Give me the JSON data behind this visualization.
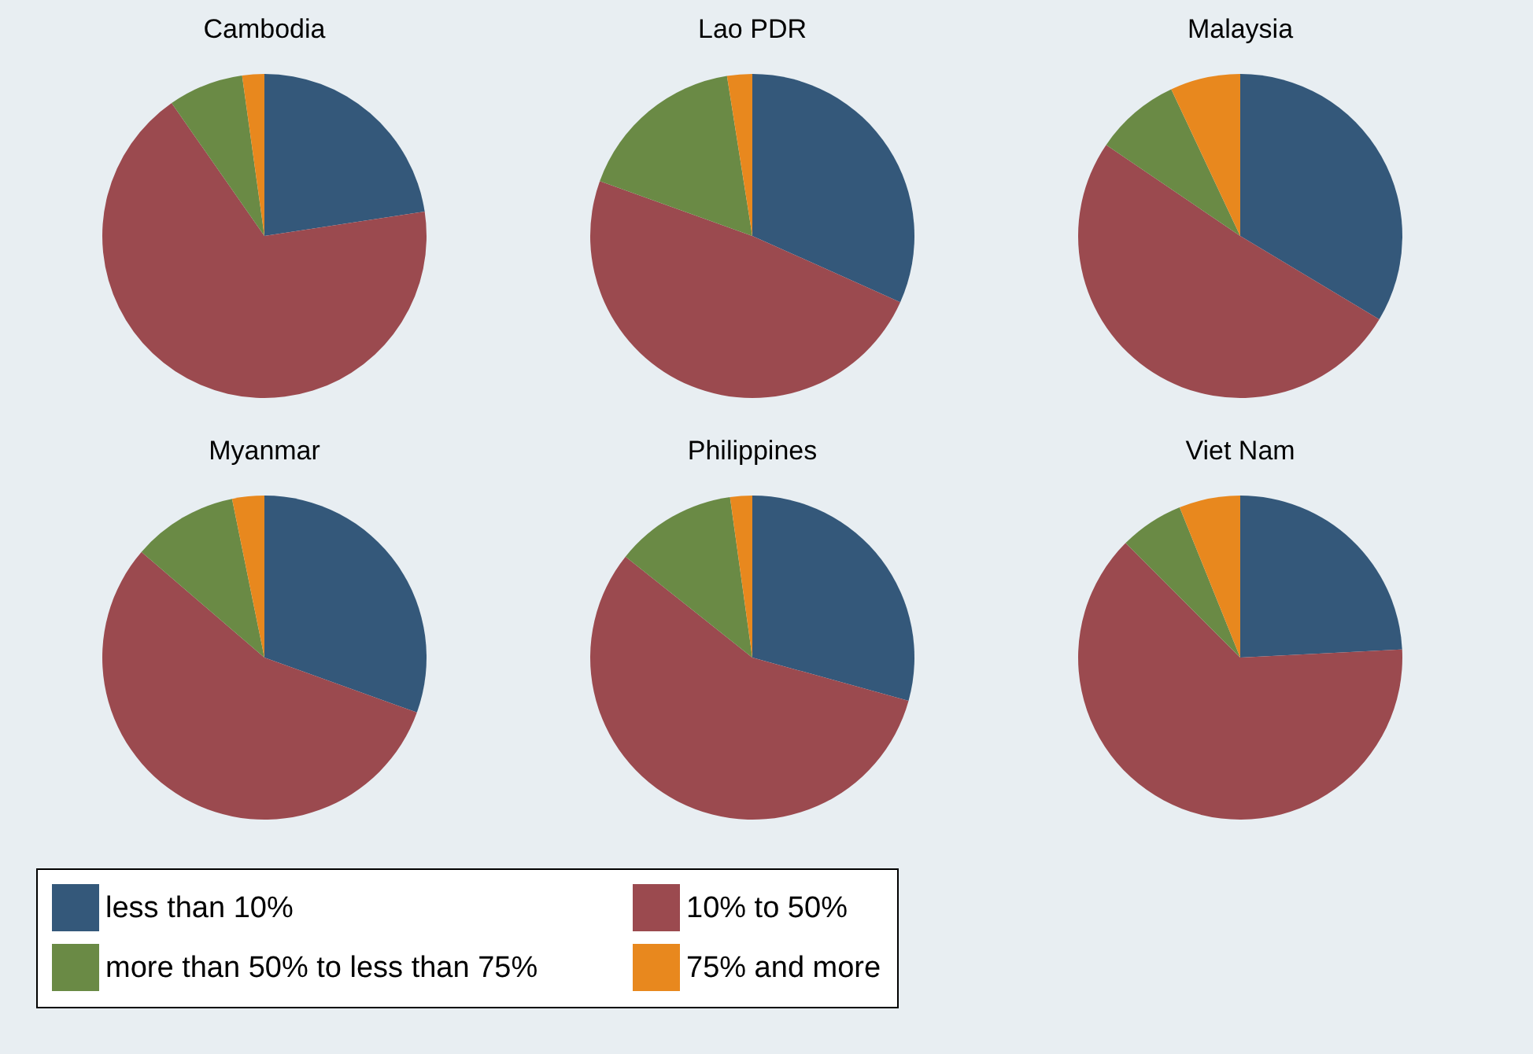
{
  "chart_data": [
    {
      "type": "pie",
      "title": "Cambodia",
      "categories": [
        "less than 10%",
        "10% to 50%",
        "more than 50% to less than 75%",
        "75% and more"
      ],
      "values": [
        22.6,
        67.7,
        7.5,
        2.2
      ],
      "colors": [
        "#34587a",
        "#9b4a4f",
        "#6a8a45",
        "#e8881e"
      ],
      "legend": "bottom"
    },
    {
      "type": "pie",
      "title": "Lao PDR",
      "categories": [
        null,
        null,
        null,
        null
      ],
      "values": [
        31.7,
        48.8,
        17,
        2.5
      ],
      "colors": [
        "#34587a",
        "#9b4a4f",
        "#6a8a45",
        "#e8881e"
      ]
    },
    {
      "type": "pie",
      "title": "Malaysia",
      "categories": [
        null,
        null,
        null,
        null
      ],
      "values": [
        33.6,
        50.9,
        8.5,
        7
      ],
      "colors": [
        "#34587a",
        "#9b4a4f",
        "#6a8a45",
        "#e8881e"
      ]
    },
    {
      "type": "pie",
      "title": "Myanmar",
      "categories": [
        null,
        null,
        null,
        null
      ],
      "values": [
        30.5,
        55.8,
        10.5,
        3.2
      ],
      "colors": [
        "#34587a",
        "#9b4a4f",
        "#6a8a45",
        "#e8881e"
      ]
    },
    {
      "type": "pie",
      "title": "Philippines",
      "categories": [
        null,
        null,
        null,
        null
      ],
      "values": [
        29.3,
        56.4,
        12.1,
        2.2
      ],
      "colors": [
        "#34587a",
        "#9b4a4f",
        "#6a8a45",
        "#e8881e"
      ]
    },
    {
      "type": "pie",
      "title": "Viet Nam",
      "categories": [
        null,
        null,
        null,
        null
      ],
      "values": [
        24.2,
        63.3,
        6.4,
        6.1
      ],
      "colors": [
        "#34587a",
        "#9b4a4f",
        "#6a8a45",
        "#e8881e"
      ]
    }
  ]
}
